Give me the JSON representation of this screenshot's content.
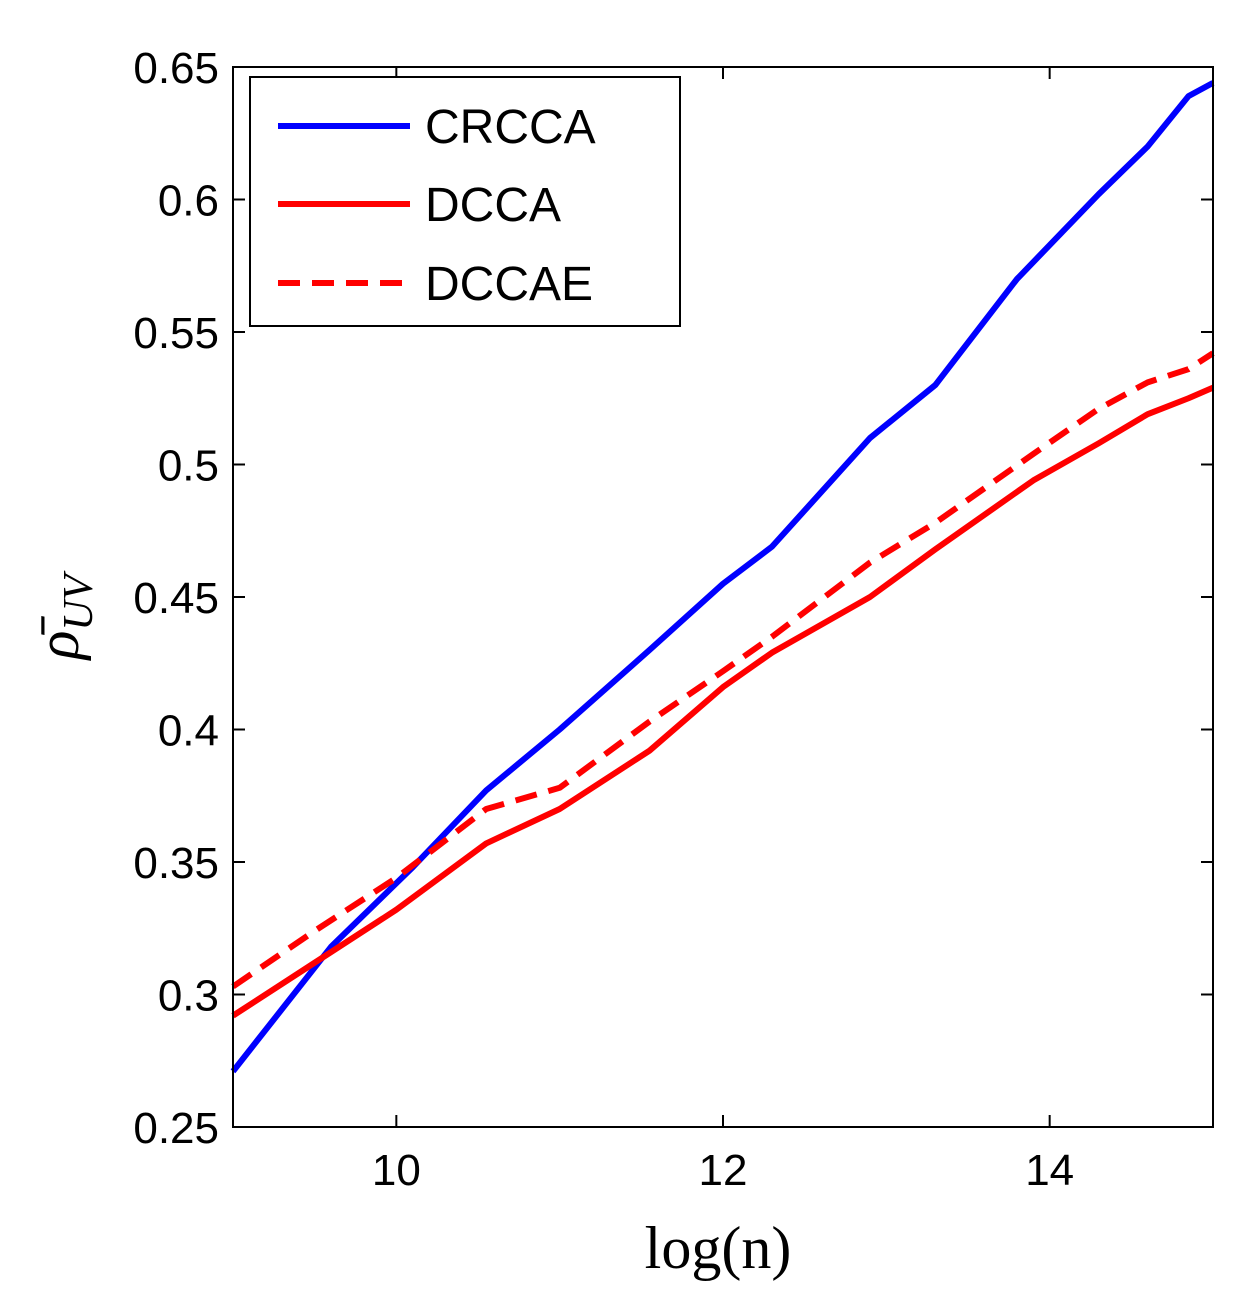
{
  "chart_data": {
    "type": "line",
    "title": "",
    "xlabel": "log(n)",
    "ylabel_main": "ρ̄",
    "ylabel_sub": "UV",
    "xlim": [
      9,
      15
    ],
    "ylim": [
      0.25,
      0.65
    ],
    "xticks": [
      10,
      12,
      14
    ],
    "xtick_labels": [
      "10",
      "12",
      "14"
    ],
    "yticks": [
      0.25,
      0.3,
      0.35,
      0.4,
      0.45,
      0.5,
      0.55,
      0.6,
      0.65
    ],
    "ytick_labels": [
      "0.25",
      "0.3",
      "0.35",
      "0.4",
      "0.45",
      "0.5",
      "0.55",
      "0.6",
      "0.65"
    ],
    "grid": false,
    "legend_position": "top-left",
    "series": [
      {
        "name": "CRCCA",
        "color": "#0000ff",
        "dash": "solid",
        "x": [
          9.0,
          9.6,
          10.1,
          10.55,
          11.0,
          11.55,
          12.0,
          12.3,
          12.9,
          13.3,
          13.8,
          14.3,
          14.6,
          14.85,
          15.0
        ],
        "y": [
          0.271,
          0.318,
          0.348,
          0.377,
          0.4,
          0.43,
          0.455,
          0.469,
          0.51,
          0.53,
          0.57,
          0.602,
          0.62,
          0.639,
          0.644
        ]
      },
      {
        "name": "DCCA",
        "color": "#ff0000",
        "dash": "solid",
        "x": [
          9.0,
          9.5,
          10.0,
          10.55,
          11.0,
          11.55,
          12.0,
          12.3,
          12.9,
          13.3,
          13.9,
          14.3,
          14.6,
          14.85,
          15.0
        ],
        "y": [
          0.292,
          0.312,
          0.332,
          0.357,
          0.37,
          0.392,
          0.416,
          0.429,
          0.45,
          0.468,
          0.494,
          0.508,
          0.519,
          0.525,
          0.529
        ]
      },
      {
        "name": "DCCAE",
        "color": "#ff0000",
        "dash": "dashed",
        "x": [
          9.0,
          9.5,
          10.0,
          10.55,
          11.0,
          11.55,
          12.0,
          12.3,
          12.9,
          13.3,
          13.9,
          14.3,
          14.6,
          14.85,
          15.0
        ],
        "y": [
          0.303,
          0.324,
          0.344,
          0.37,
          0.378,
          0.403,
          0.422,
          0.435,
          0.463,
          0.478,
          0.504,
          0.521,
          0.531,
          0.536,
          0.542
        ]
      }
    ]
  }
}
